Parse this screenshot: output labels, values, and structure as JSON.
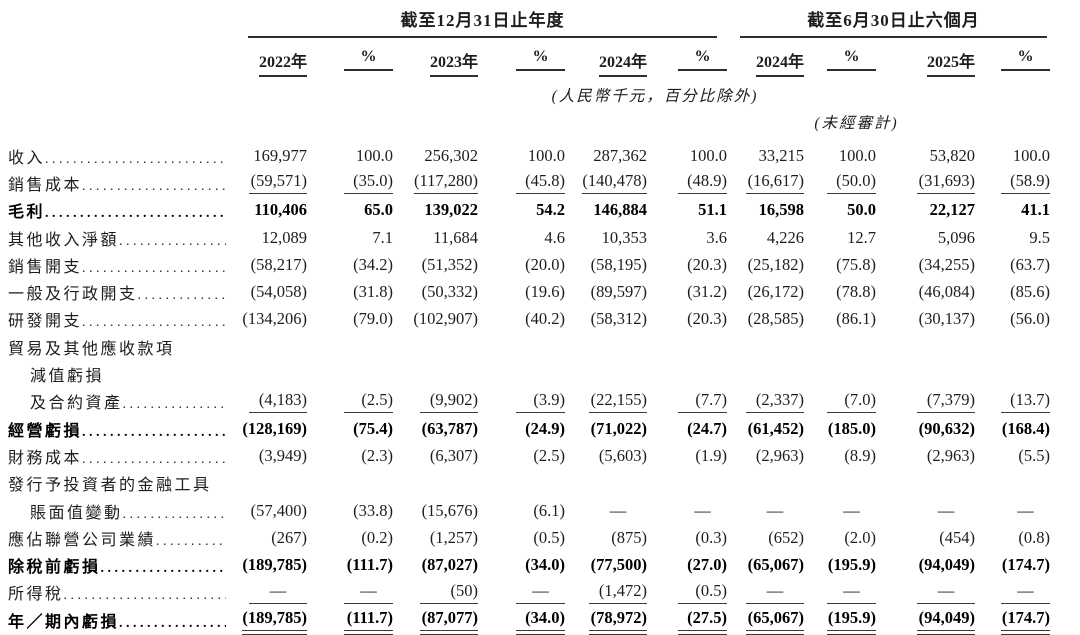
{
  "colors": {
    "text": "#1d1d1d",
    "rule": "#3a3a3a"
  },
  "table": {
    "groups": [
      {
        "label": "截至12月31日止年度"
      },
      {
        "label": "截至6月30日止六個月"
      }
    ],
    "columns": [
      "2022年",
      "%",
      "2023年",
      "%",
      "2024年",
      "%",
      "2024年",
      "%",
      "2025年",
      "%"
    ],
    "unit_note": "(人民幣千元，百分比除外)",
    "unaudited_note": "(未經審計)",
    "rows": [
      {
        "label": "收入",
        "indent": 0,
        "bold": false,
        "rule": "none",
        "cells": [
          "169,977",
          "100.0",
          "256,302",
          "100.0",
          "287,362",
          "100.0",
          "33,215",
          "100.0",
          "53,820",
          "100.0"
        ]
      },
      {
        "label": "銷售成本",
        "indent": 0,
        "bold": false,
        "rule": "single",
        "cells": [
          "(59,571)",
          "(35.0)",
          "(117,280)",
          "(45.8)",
          "(140,478)",
          "(48.9)",
          "(16,617)",
          "(50.0)",
          "(31,693)",
          "(58.9)"
        ]
      },
      {
        "label": "毛利",
        "indent": 0,
        "bold": true,
        "rule": "none",
        "cells": [
          "110,406",
          "65.0",
          "139,022",
          "54.2",
          "146,884",
          "51.1",
          "16,598",
          "50.0",
          "22,127",
          "41.1"
        ]
      },
      {
        "label": "其他收入淨額",
        "indent": 0,
        "bold": false,
        "rule": "none",
        "cells": [
          "12,089",
          "7.1",
          "11,684",
          "4.6",
          "10,353",
          "3.6",
          "4,226",
          "12.7",
          "5,096",
          "9.5"
        ]
      },
      {
        "label": "銷售開支",
        "indent": 0,
        "bold": false,
        "rule": "none",
        "cells": [
          "(58,217)",
          "(34.2)",
          "(51,352)",
          "(20.0)",
          "(58,195)",
          "(20.3)",
          "(25,182)",
          "(75.8)",
          "(34,255)",
          "(63.7)"
        ]
      },
      {
        "label": "一般及行政開支",
        "indent": 0,
        "bold": false,
        "rule": "none",
        "cells": [
          "(54,058)",
          "(31.8)",
          "(50,332)",
          "(19.6)",
          "(89,597)",
          "(31.2)",
          "(26,172)",
          "(78.8)",
          "(46,084)",
          "(85.6)"
        ]
      },
      {
        "label": "研發開支",
        "indent": 0,
        "bold": false,
        "rule": "none",
        "cells": [
          "(134,206)",
          "(79.0)",
          "(102,907)",
          "(40.2)",
          "(58,312)",
          "(20.3)",
          "(28,585)",
          "(86.1)",
          "(30,137)",
          "(56.0)"
        ]
      },
      {
        "label": "貿易及其他應收款項",
        "indent": 0,
        "bold": false,
        "rule": "none",
        "cells": null
      },
      {
        "label": "減值虧損",
        "indent": 1,
        "bold": false,
        "rule": "none",
        "cells": null
      },
      {
        "label": "及合約資產",
        "indent": 1,
        "bold": false,
        "rule": "single",
        "cells": [
          "(4,183)",
          "(2.5)",
          "(9,902)",
          "(3.9)",
          "(22,155)",
          "(7.7)",
          "(2,337)",
          "(7.0)",
          "(7,379)",
          "(13.7)"
        ]
      },
      {
        "label": "經營虧損",
        "indent": 0,
        "bold": true,
        "rule": "none",
        "cells": [
          "(128,169)",
          "(75.4)",
          "(63,787)",
          "(24.9)",
          "(71,022)",
          "(24.7)",
          "(61,452)",
          "(185.0)",
          "(90,632)",
          "(168.4)"
        ]
      },
      {
        "label": "財務成本",
        "indent": 0,
        "bold": false,
        "rule": "none",
        "cells": [
          "(3,949)",
          "(2.3)",
          "(6,307)",
          "(2.5)",
          "(5,603)",
          "(1.9)",
          "(2,963)",
          "(8.9)",
          "(2,963)",
          "(5.5)"
        ]
      },
      {
        "label": "發行予投資者的金融工具",
        "indent": 0,
        "bold": false,
        "rule": "none",
        "cells": null
      },
      {
        "label": "賬面值變動",
        "indent": 1,
        "bold": false,
        "rule": "none",
        "cells": [
          "(57,400)",
          "(33.8)",
          "(15,676)",
          "(6.1)",
          "—",
          "—",
          "—",
          "—",
          "—",
          "—"
        ]
      },
      {
        "label": "應佔聯營公司業績",
        "indent": 0,
        "bold": false,
        "rule": "none",
        "cells": [
          "(267)",
          "(0.2)",
          "(1,257)",
          "(0.5)",
          "(875)",
          "(0.3)",
          "(652)",
          "(2.0)",
          "(454)",
          "(0.8)"
        ]
      },
      {
        "label": "除稅前虧損",
        "indent": 0,
        "bold": true,
        "rule": "none",
        "cells": [
          "(189,785)",
          "(111.7)",
          "(87,027)",
          "(34.0)",
          "(77,500)",
          "(27.0)",
          "(65,067)",
          "(195.9)",
          "(94,049)",
          "(174.7)"
        ]
      },
      {
        "label": "所得稅",
        "indent": 0,
        "bold": false,
        "rule": "single",
        "cells": [
          "—",
          "—",
          "(50)",
          "—",
          "(1,472)",
          "(0.5)",
          "—",
          "—",
          "—",
          "—"
        ]
      },
      {
        "label": "年／期內虧損",
        "indent": 0,
        "bold": true,
        "rule": "double",
        "cells": [
          "(189,785)",
          "(111.7)",
          "(87,077)",
          "(34.0)",
          "(78,972)",
          "(27.5)",
          "(65,067)",
          "(195.9)",
          "(94,049)",
          "(174.7)"
        ]
      }
    ]
  }
}
